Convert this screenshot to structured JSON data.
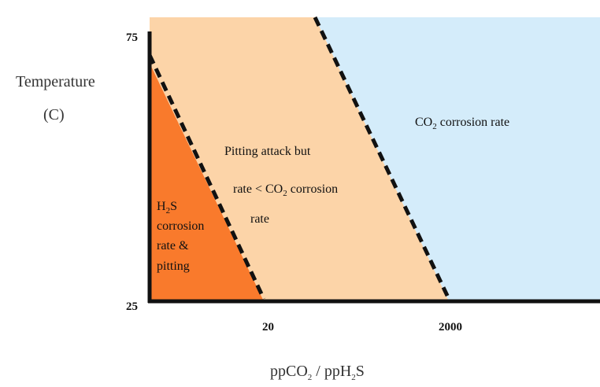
{
  "y_axis": {
    "label_lines": [
      "Temperature",
      "(C)"
    ],
    "ticks": [
      "75",
      "25"
    ]
  },
  "x_axis": {
    "label_parts": [
      "ppCO",
      "2",
      " / ppH",
      "2",
      "S"
    ],
    "ticks": [
      "20",
      "2000"
    ]
  },
  "regions": [
    {
      "lines": [
        [
          "H",
          "2",
          "S"
        ],
        [
          "corrosion"
        ],
        [
          "rate &"
        ],
        [
          "pitting"
        ]
      ]
    },
    {
      "lines": [
        [
          "Pitting attack  but"
        ],
        [
          "rate < CO",
          "2",
          " corrosion"
        ],
        [
          "rate"
        ]
      ]
    },
    {
      "lines": [
        [
          "CO",
          "2",
          " corrosion rate"
        ]
      ]
    }
  ]
}
